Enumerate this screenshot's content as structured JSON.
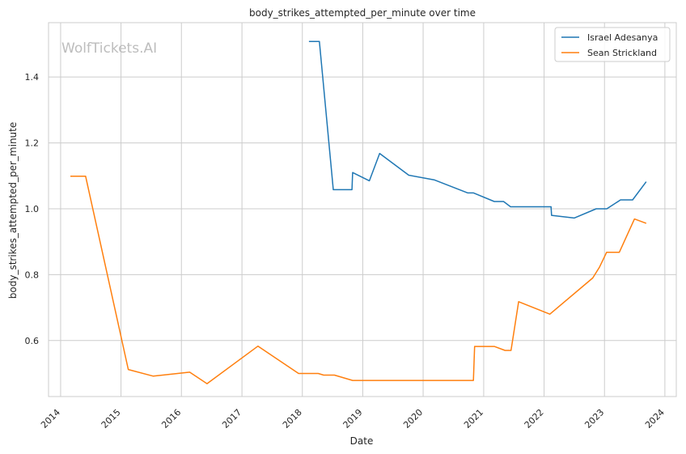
{
  "chart_data": {
    "type": "line",
    "title": "body_strikes_attempted_per_minute over time",
    "xlabel": "Date",
    "ylabel": "body_strikes_attempted_per_minute",
    "xlim": [
      "2013-10-20",
      "2024-03-10"
    ],
    "ylim": [
      0.43,
      1.565
    ],
    "x_ticks": [
      "2014",
      "2015",
      "2016",
      "2017",
      "2018",
      "2019",
      "2020",
      "2021",
      "2022",
      "2023",
      "2024"
    ],
    "y_ticks": [
      0.6,
      0.8,
      1.0,
      1.2,
      1.4
    ],
    "grid": true,
    "legend_position": "top-right",
    "watermark": "WolfTickets.AI",
    "series": [
      {
        "name": "Israel Adesanya",
        "color": "#1f77b4",
        "points": [
          [
            "2018-02-10",
            1.508
          ],
          [
            "2018-04-14",
            1.508
          ],
          [
            "2018-07-07",
            1.058
          ],
          [
            "2018-10-28",
            1.058
          ],
          [
            "2018-11-01",
            1.11
          ],
          [
            "2019-02-10",
            1.085
          ],
          [
            "2019-04-13",
            1.168
          ],
          [
            "2019-10-06",
            1.102
          ],
          [
            "2020-03-07",
            1.088
          ],
          [
            "2020-09-27",
            1.048
          ],
          [
            "2020-11-01",
            1.048
          ],
          [
            "2021-03-06",
            1.022
          ],
          [
            "2021-05-01",
            1.022
          ],
          [
            "2021-06-12",
            1.006
          ],
          [
            "2022-02-12",
            1.006
          ],
          [
            "2022-02-15",
            0.98
          ],
          [
            "2022-07-02",
            0.972
          ],
          [
            "2022-11-12",
            1.0
          ],
          [
            "2023-01-15",
            1.0
          ],
          [
            "2023-04-08",
            1.027
          ],
          [
            "2023-06-20",
            1.027
          ],
          [
            "2023-09-10",
            1.082
          ]
        ]
      },
      {
        "name": "Sean Strickland",
        "color": "#ff7f0e",
        "points": [
          [
            "2014-03-01",
            1.099
          ],
          [
            "2014-06-01",
            1.099
          ],
          [
            "2015-02-14",
            0.512
          ],
          [
            "2015-07-15",
            0.492
          ],
          [
            "2016-02-20",
            0.504
          ],
          [
            "2016-06-04",
            0.469
          ],
          [
            "2017-04-08",
            0.583
          ],
          [
            "2017-12-09",
            0.5
          ],
          [
            "2018-04-07",
            0.5
          ],
          [
            "2018-05-10",
            0.495
          ],
          [
            "2018-07-14",
            0.495
          ],
          [
            "2018-11-01",
            0.479
          ],
          [
            "2020-10-31",
            0.479
          ],
          [
            "2020-11-07",
            0.582
          ],
          [
            "2021-03-06",
            0.582
          ],
          [
            "2021-05-10",
            0.57
          ],
          [
            "2021-06-15",
            0.57
          ],
          [
            "2021-07-31",
            0.718
          ],
          [
            "2022-02-05",
            0.68
          ],
          [
            "2022-10-22",
            0.79
          ],
          [
            "2022-12-01",
            0.822
          ],
          [
            "2023-01-14",
            0.868
          ],
          [
            "2023-04-01",
            0.868
          ],
          [
            "2023-07-01",
            0.969
          ],
          [
            "2023-09-10",
            0.956
          ]
        ]
      }
    ]
  }
}
